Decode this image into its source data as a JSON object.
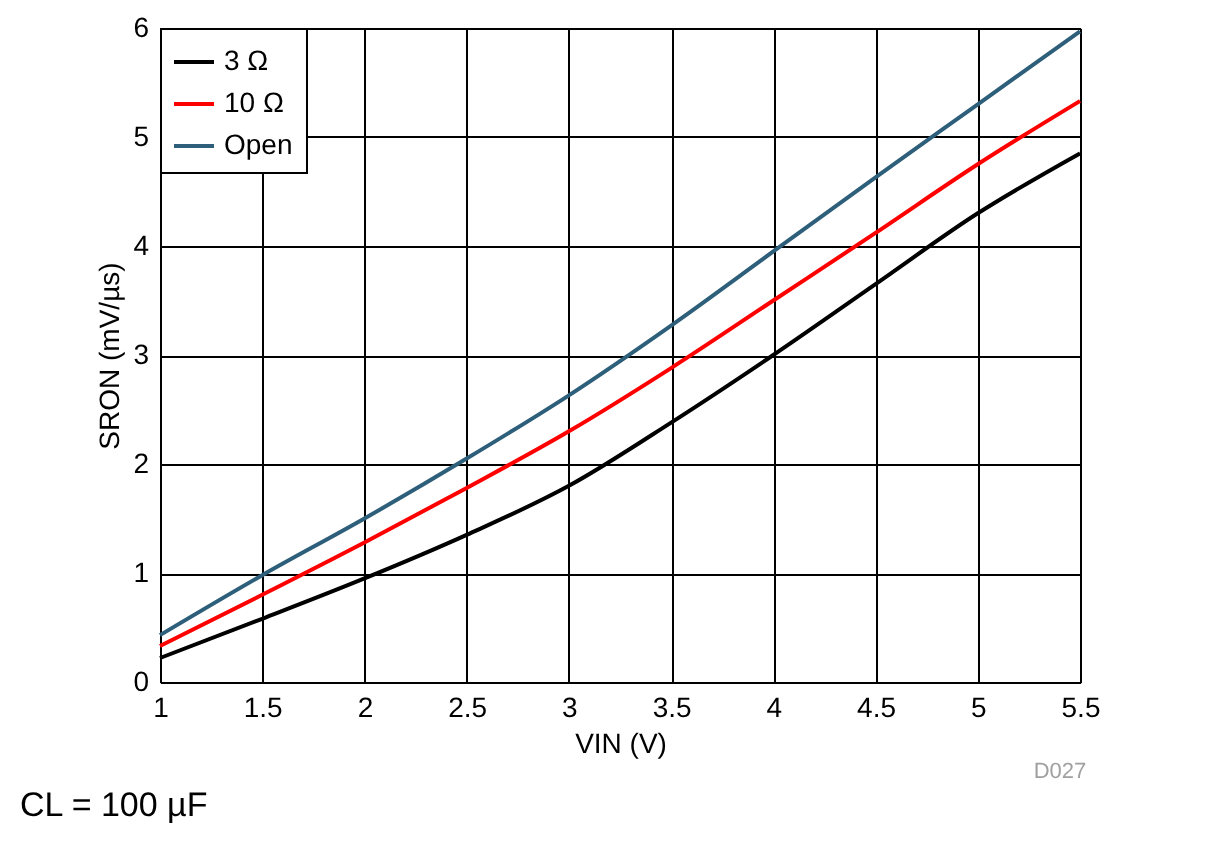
{
  "chart_data": {
    "type": "line",
    "x": [
      1,
      1.5,
      2,
      2.5,
      3,
      3.5,
      4,
      4.5,
      5,
      5.5
    ],
    "series": [
      {
        "name": "3 Ω",
        "color": "#000000",
        "values": [
          0.22,
          0.58,
          0.95,
          1.35,
          1.8,
          2.38,
          3.0,
          3.65,
          4.3,
          4.85
        ]
      },
      {
        "name": "10 Ω",
        "color": "#ff0000",
        "values": [
          0.33,
          0.8,
          1.28,
          1.78,
          2.3,
          2.88,
          3.5,
          4.12,
          4.75,
          5.33
        ]
      },
      {
        "name": "Open",
        "color": "#2e5f7a",
        "values": [
          0.43,
          0.98,
          1.5,
          2.05,
          2.63,
          3.27,
          3.95,
          4.63,
          5.3,
          5.97
        ]
      }
    ],
    "xlabel": "VIN (V)",
    "ylabel": "SRON (mV/µs)",
    "xlim": [
      1,
      5.5
    ],
    "xticks": [
      1,
      1.5,
      2,
      2.5,
      3,
      3.5,
      4,
      4.5,
      5,
      5.5
    ],
    "ylim": [
      0,
      6
    ],
    "yticks": [
      0,
      1,
      2,
      3,
      4,
      5,
      6
    ],
    "grid": true,
    "legend": "top left",
    "line_style": "solid",
    "marker": "none",
    "annotations": [
      "D027",
      "CL = 100 µF"
    ]
  }
}
